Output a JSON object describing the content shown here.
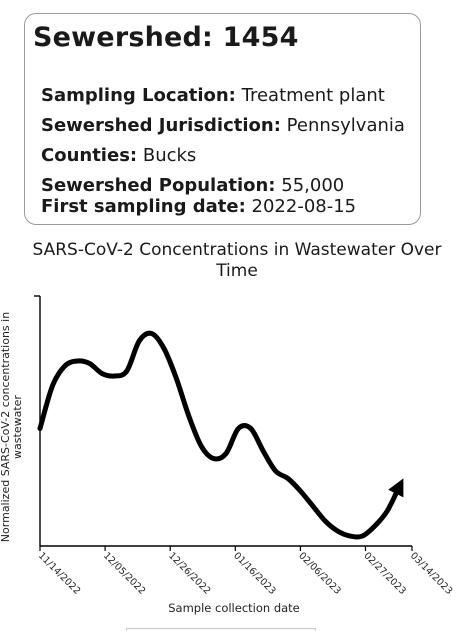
{
  "sewershed": {
    "title": "Sewershed: 1454",
    "rows": [
      {
        "label": "Sampling Location:",
        "value": "Treatment plant"
      },
      {
        "label": "Sewershed Jurisdiction:",
        "value": "Pennsylvania"
      },
      {
        "label": "Counties:",
        "value": "Bucks"
      },
      {
        "label": "Sewershed Population:",
        "value": "55,000"
      },
      {
        "label": "First sampling date:",
        "value": "2022-08-15"
      }
    ]
  },
  "chart_data": {
    "type": "line",
    "title_lines": [
      "SARS-CoV-2 Concentrations in Wastewater Over",
      "Time"
    ],
    "xlabel": "Sample collection date",
    "ylabel_lines": [
      "Normalized SARS-CoV-2 concentrations in",
      "wastewater"
    ],
    "x_ticks": [
      "11/14/2022",
      "12/05/2022",
      "12/26/2022",
      "01/16/2023",
      "02/06/2023",
      "02/27/2023",
      "03/14/2023"
    ],
    "xlim": [
      "2022-11-14",
      "2023-03-14"
    ],
    "ylim": [
      0,
      1
    ],
    "y_ticks_labeled": false,
    "grid": false,
    "series": [
      {
        "color": "#000000",
        "end_arrow": true,
        "x": [
          "2022-11-14",
          "2022-11-18",
          "2022-11-22",
          "2022-11-26",
          "2022-11-30",
          "2022-12-04",
          "2022-12-08",
          "2022-12-12",
          "2022-12-16",
          "2022-12-20",
          "2022-12-24",
          "2022-12-28",
          "2023-01-01",
          "2023-01-05",
          "2023-01-09",
          "2023-01-13",
          "2023-01-17",
          "2023-01-21",
          "2023-01-25",
          "2023-01-29",
          "2023-02-02",
          "2023-02-06",
          "2023-02-10",
          "2023-02-14",
          "2023-02-18",
          "2023-02-22",
          "2023-02-26",
          "2023-03-02",
          "2023-03-06",
          "2023-03-10"
        ],
        "y": [
          0.47,
          0.64,
          0.72,
          0.74,
          0.73,
          0.69,
          0.68,
          0.7,
          0.82,
          0.85,
          0.79,
          0.67,
          0.52,
          0.4,
          0.35,
          0.37,
          0.47,
          0.47,
          0.38,
          0.3,
          0.27,
          0.22,
          0.16,
          0.1,
          0.06,
          0.04,
          0.04,
          0.08,
          0.14,
          0.24
        ]
      }
    ]
  }
}
